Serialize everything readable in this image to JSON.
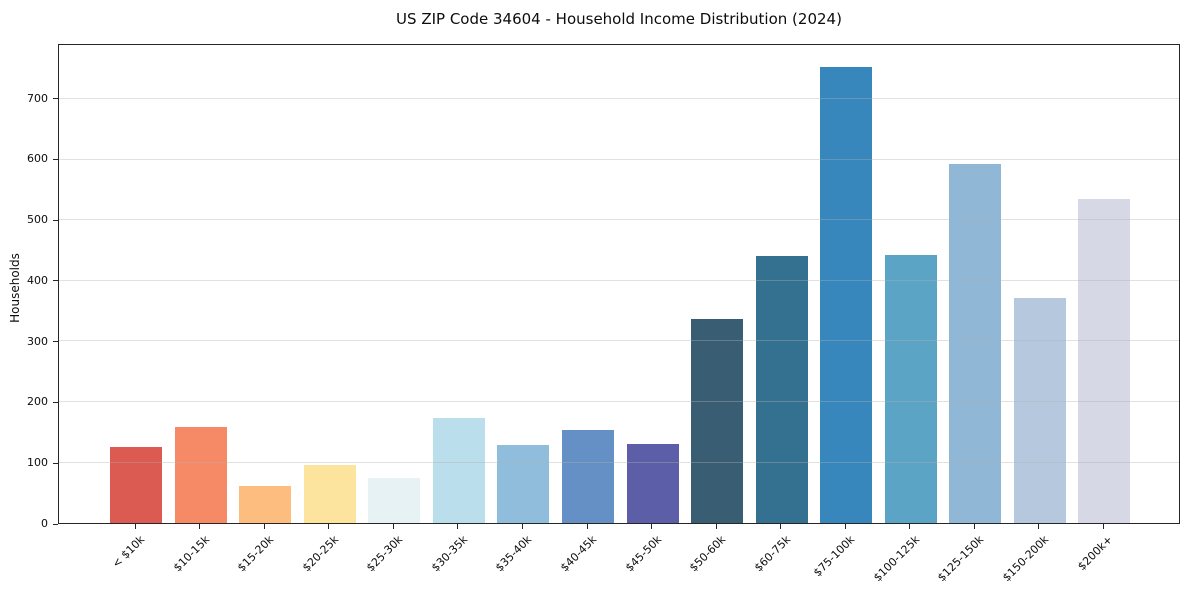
{
  "chart_data": {
    "type": "bar",
    "title": "US ZIP Code 34604 - Household Income Distribution (2024)",
    "xlabel": "",
    "ylabel": "Households",
    "categories": [
      "< $10k",
      "$10-15k",
      "$15-20k",
      "$20-25k",
      "$25-30k",
      "$30-35k",
      "$35-40k",
      "$40-45k",
      "$45-50k",
      "$50-60k",
      "$60-75k",
      "$75-100k",
      "$100-125k",
      "$125-150k",
      "$150-200k",
      "$200k+"
    ],
    "values": [
      126,
      159,
      62,
      96,
      75,
      173,
      129,
      153,
      131,
      337,
      441,
      753,
      443,
      593,
      372,
      536
    ],
    "bar_colors": [
      "#db5a52",
      "#f78a66",
      "#fcbd7e",
      "#fde49e",
      "#e7f2f5",
      "#badeeb",
      "#91bddd",
      "#6590c5",
      "#5c5fa7",
      "#395e74",
      "#34708f",
      "#3787bd",
      "#5ca4c6",
      "#90b7d6",
      "#b5c8de",
      "#d6d8e5"
    ],
    "yticks": [
      0,
      100,
      200,
      300,
      400,
      500,
      600,
      700
    ],
    "ylim": [
      0,
      790
    ],
    "grid": "horizontal",
    "grid_above_bars": true,
    "legend": "none",
    "background_color": "#ffffff",
    "spine_color": "#262626"
  }
}
